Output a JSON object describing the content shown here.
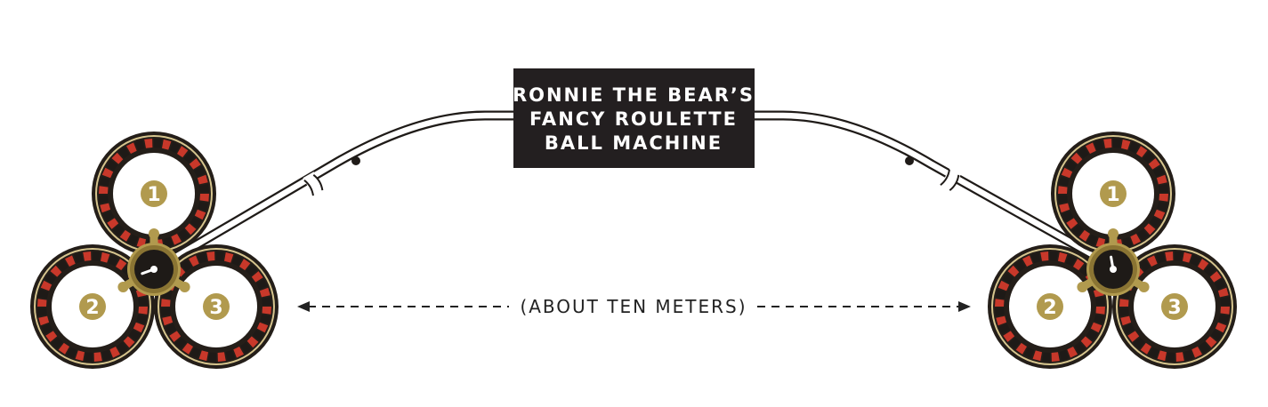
{
  "machine_label": {
    "line1": "RONNIE THE BEAR’S",
    "line2": "FANCY ROULETTE",
    "line3": "BALL MACHINE"
  },
  "distance_label": "(ABOUT TEN METERS)",
  "left_cluster": {
    "wheels": [
      {
        "number": "1"
      },
      {
        "number": "2"
      },
      {
        "number": "3"
      }
    ]
  },
  "right_cluster": {
    "wheels": [
      {
        "number": "1"
      },
      {
        "number": "2"
      },
      {
        "number": "3"
      }
    ]
  },
  "colors": {
    "gold": "#b19a4e",
    "gold_dark": "#8a7433",
    "wheel_red": "#c8382a",
    "wheel_black": "#1e1a17",
    "rim": "#241e19",
    "label_bg": "#231f20",
    "arrow": "#222222"
  }
}
